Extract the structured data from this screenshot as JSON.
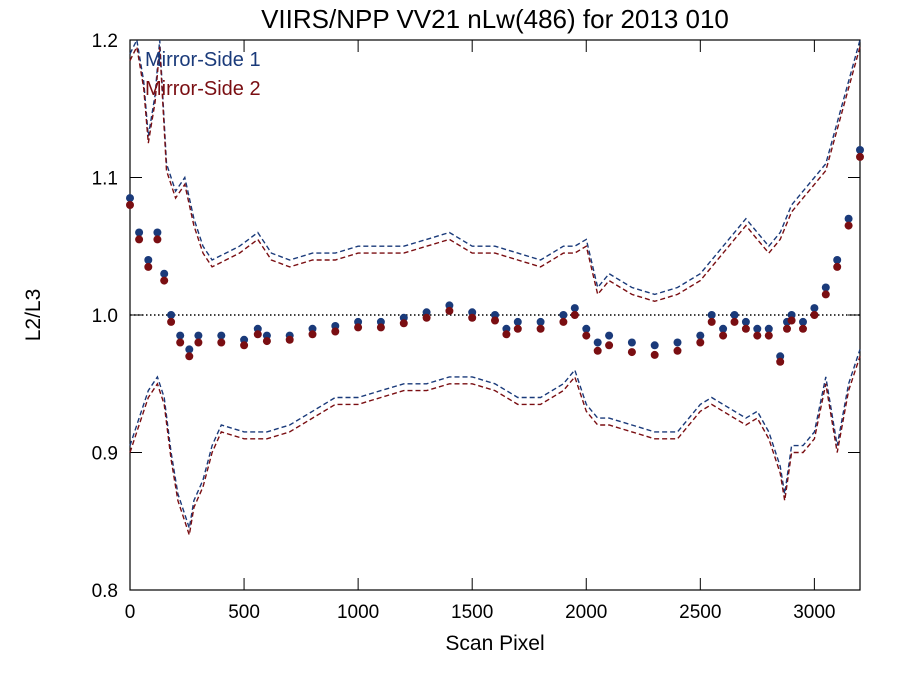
{
  "chart_data": {
    "type": "scatter",
    "title": "VIIRS/NPP VV21 nLw(486) for 2013 010",
    "xlabel": "Scan Pixel",
    "ylabel": "L2/L3",
    "xlim": [
      0,
      3200
    ],
    "ylim": [
      0.8,
      1.2
    ],
    "x_ticks": [
      0,
      500,
      1000,
      1500,
      2000,
      2500,
      3000
    ],
    "y_ticks": [
      0.8,
      0.9,
      1.0,
      1.1,
      1.2
    ],
    "x_tick_labels": [
      "0",
      "500",
      "1000",
      "1500",
      "2000",
      "2500",
      "3000"
    ],
    "y_tick_labels": [
      "0.8",
      "0.9",
      "1.0",
      "1.1",
      "1.2"
    ],
    "reference_line": 1.0,
    "legend_position": "top-left",
    "colors": {
      "mirror_side_1": "#1a3a7a",
      "mirror_side_2": "#7a0e12",
      "reference": "#000000"
    },
    "series": [
      {
        "name": "Mirror-Side 1",
        "color": "#1a3a7a",
        "x": [
          0,
          40,
          80,
          120,
          150,
          180,
          220,
          260,
          300,
          400,
          500,
          560,
          600,
          700,
          800,
          900,
          1000,
          1100,
          1200,
          1300,
          1400,
          1500,
          1600,
          1650,
          1700,
          1800,
          1900,
          1950,
          2000,
          2050,
          2100,
          2200,
          2300,
          2400,
          2500,
          2550,
          2600,
          2650,
          2700,
          2750,
          2800,
          2850,
          2880,
          2900,
          2950,
          3000,
          3050,
          3100,
          3150,
          3200
        ],
        "y": [
          1.085,
          1.06,
          1.04,
          1.06,
          1.03,
          1.0,
          0.985,
          0.975,
          0.985,
          0.985,
          0.982,
          0.99,
          0.985,
          0.985,
          0.99,
          0.992,
          0.995,
          0.995,
          0.998,
          1.002,
          1.007,
          1.002,
          1.0,
          0.99,
          0.995,
          0.995,
          1.0,
          1.005,
          0.99,
          0.98,
          0.985,
          0.98,
          0.978,
          0.98,
          0.985,
          1.0,
          0.99,
          1.0,
          0.995,
          0.99,
          0.99,
          0.97,
          0.995,
          1.0,
          0.995,
          1.005,
          1.02,
          1.04,
          1.07,
          1.12
        ]
      },
      {
        "name": "Mirror-Side 2",
        "color": "#7a0e12",
        "x": [
          0,
          40,
          80,
          120,
          150,
          180,
          220,
          260,
          300,
          400,
          500,
          560,
          600,
          700,
          800,
          900,
          1000,
          1100,
          1200,
          1300,
          1400,
          1500,
          1600,
          1650,
          1700,
          1800,
          1900,
          1950,
          2000,
          2050,
          2100,
          2200,
          2300,
          2400,
          2500,
          2550,
          2600,
          2650,
          2700,
          2750,
          2800,
          2850,
          2880,
          2900,
          2950,
          3000,
          3050,
          3100,
          3150,
          3200
        ],
        "y": [
          1.08,
          1.055,
          1.035,
          1.055,
          1.025,
          0.995,
          0.98,
          0.97,
          0.98,
          0.98,
          0.978,
          0.986,
          0.981,
          0.982,
          0.986,
          0.988,
          0.991,
          0.991,
          0.994,
          0.998,
          1.003,
          0.998,
          0.996,
          0.986,
          0.99,
          0.99,
          0.995,
          1.0,
          0.985,
          0.974,
          0.978,
          0.973,
          0.971,
          0.974,
          0.98,
          0.995,
          0.985,
          0.995,
          0.99,
          0.985,
          0.985,
          0.966,
          0.99,
          0.996,
          0.99,
          1.0,
          1.015,
          1.035,
          1.065,
          1.115
        ]
      },
      {
        "name": "",
        "style": "dashed",
        "color": "#1a3a7a",
        "x": [
          0,
          30,
          60,
          80,
          110,
          130,
          160,
          200,
          240,
          280,
          320,
          360,
          420,
          480,
          560,
          620,
          700,
          800,
          900,
          1000,
          1100,
          1200,
          1300,
          1400,
          1500,
          1600,
          1700,
          1800,
          1900,
          1950,
          2000,
          2050,
          2100,
          2200,
          2300,
          2400,
          2500,
          2600,
          2700,
          2750,
          2800,
          2850,
          2900,
          2950,
          3000,
          3050,
          3100,
          3150,
          3200
        ],
        "y": [
          1.19,
          1.2,
          1.17,
          1.13,
          1.16,
          1.2,
          1.11,
          1.09,
          1.1,
          1.07,
          1.05,
          1.04,
          1.045,
          1.05,
          1.06,
          1.045,
          1.04,
          1.045,
          1.045,
          1.05,
          1.05,
          1.05,
          1.055,
          1.06,
          1.05,
          1.05,
          1.045,
          1.04,
          1.05,
          1.05,
          1.055,
          1.02,
          1.03,
          1.02,
          1.015,
          1.02,
          1.03,
          1.05,
          1.07,
          1.06,
          1.05,
          1.06,
          1.08,
          1.09,
          1.1,
          1.11,
          1.14,
          1.17,
          1.2
        ]
      },
      {
        "name": "",
        "style": "dashed",
        "color": "#7a0e12",
        "x": [
          0,
          30,
          60,
          80,
          110,
          130,
          160,
          200,
          240,
          280,
          320,
          360,
          420,
          480,
          560,
          620,
          700,
          800,
          900,
          1000,
          1100,
          1200,
          1300,
          1400,
          1500,
          1600,
          1700,
          1800,
          1900,
          1950,
          2000,
          2050,
          2100,
          2200,
          2300,
          2400,
          2500,
          2600,
          2700,
          2750,
          2800,
          2850,
          2900,
          2950,
          3000,
          3050,
          3100,
          3150,
          3200
        ],
        "y": [
          1.185,
          1.195,
          1.165,
          1.125,
          1.155,
          1.195,
          1.105,
          1.085,
          1.095,
          1.065,
          1.045,
          1.035,
          1.04,
          1.045,
          1.055,
          1.04,
          1.035,
          1.04,
          1.04,
          1.045,
          1.045,
          1.045,
          1.05,
          1.055,
          1.045,
          1.045,
          1.04,
          1.035,
          1.045,
          1.045,
          1.05,
          1.015,
          1.025,
          1.015,
          1.01,
          1.015,
          1.025,
          1.045,
          1.065,
          1.055,
          1.045,
          1.055,
          1.075,
          1.085,
          1.095,
          1.105,
          1.135,
          1.165,
          1.195
        ]
      },
      {
        "name": "",
        "style": "dashed",
        "color": "#1a3a7a",
        "x": [
          0,
          40,
          80,
          120,
          150,
          180,
          210,
          240,
          260,
          280,
          320,
          360,
          400,
          500,
          600,
          700,
          800,
          900,
          1000,
          1100,
          1200,
          1300,
          1400,
          1500,
          1600,
          1700,
          1800,
          1900,
          1950,
          2000,
          2050,
          2100,
          2200,
          2300,
          2400,
          2500,
          2550,
          2600,
          2700,
          2750,
          2800,
          2850,
          2870,
          2900,
          2950,
          3000,
          3050,
          3100,
          3150,
          3200
        ],
        "y": [
          0.905,
          0.925,
          0.945,
          0.955,
          0.94,
          0.9,
          0.87,
          0.855,
          0.845,
          0.865,
          0.88,
          0.905,
          0.92,
          0.915,
          0.915,
          0.92,
          0.93,
          0.94,
          0.94,
          0.945,
          0.95,
          0.95,
          0.955,
          0.955,
          0.95,
          0.94,
          0.94,
          0.95,
          0.96,
          0.935,
          0.925,
          0.925,
          0.92,
          0.915,
          0.915,
          0.935,
          0.94,
          0.935,
          0.925,
          0.93,
          0.915,
          0.89,
          0.87,
          0.905,
          0.905,
          0.915,
          0.955,
          0.905,
          0.95,
          0.975
        ]
      },
      {
        "name": "",
        "style": "dashed",
        "color": "#7a0e12",
        "x": [
          0,
          40,
          80,
          120,
          150,
          180,
          210,
          240,
          260,
          280,
          320,
          360,
          400,
          500,
          600,
          700,
          800,
          900,
          1000,
          1100,
          1200,
          1300,
          1400,
          1500,
          1600,
          1700,
          1800,
          1900,
          1950,
          2000,
          2050,
          2100,
          2200,
          2300,
          2400,
          2500,
          2550,
          2600,
          2700,
          2750,
          2800,
          2850,
          2870,
          2900,
          2950,
          3000,
          3050,
          3100,
          3150,
          3200
        ],
        "y": [
          0.9,
          0.92,
          0.94,
          0.95,
          0.935,
          0.895,
          0.865,
          0.85,
          0.84,
          0.86,
          0.875,
          0.9,
          0.915,
          0.91,
          0.91,
          0.915,
          0.925,
          0.935,
          0.935,
          0.94,
          0.945,
          0.945,
          0.95,
          0.95,
          0.945,
          0.935,
          0.935,
          0.945,
          0.955,
          0.93,
          0.92,
          0.92,
          0.915,
          0.91,
          0.91,
          0.93,
          0.935,
          0.93,
          0.92,
          0.925,
          0.91,
          0.885,
          0.865,
          0.9,
          0.9,
          0.91,
          0.95,
          0.9,
          0.945,
          0.97
        ]
      }
    ]
  }
}
